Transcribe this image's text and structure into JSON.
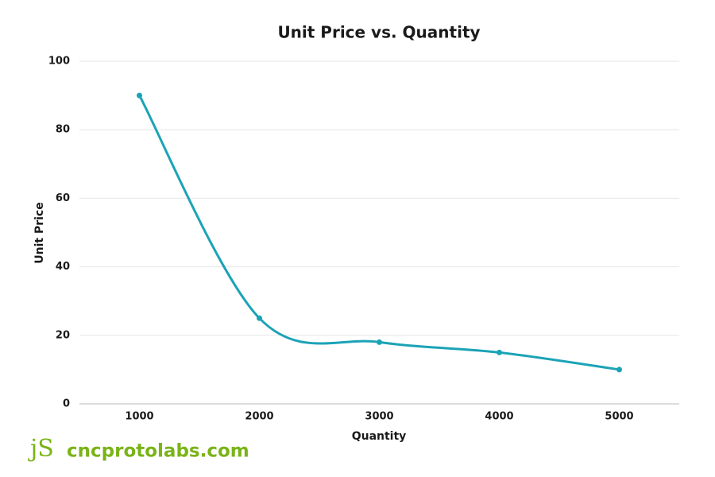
{
  "chart_data": {
    "type": "line",
    "title": "Unit Price vs. Quantity",
    "x_label": "Quantity",
    "y_label": "Unit Price",
    "x": [
      1000,
      2000,
      3000,
      4000,
      5000
    ],
    "values": [
      90,
      25,
      18,
      15,
      10
    ],
    "color": "#1ba3b6",
    "xlim": [
      500,
      5500
    ],
    "xticks": [
      1000,
      2000,
      3000,
      4000,
      5000
    ],
    "ylim": [
      0,
      100
    ],
    "yticks": [
      0,
      20,
      40,
      60,
      80,
      100
    ],
    "grid": true,
    "smooth": true
  },
  "watermark": {
    "logo": "jS",
    "text": "cncprotolabs.com"
  }
}
